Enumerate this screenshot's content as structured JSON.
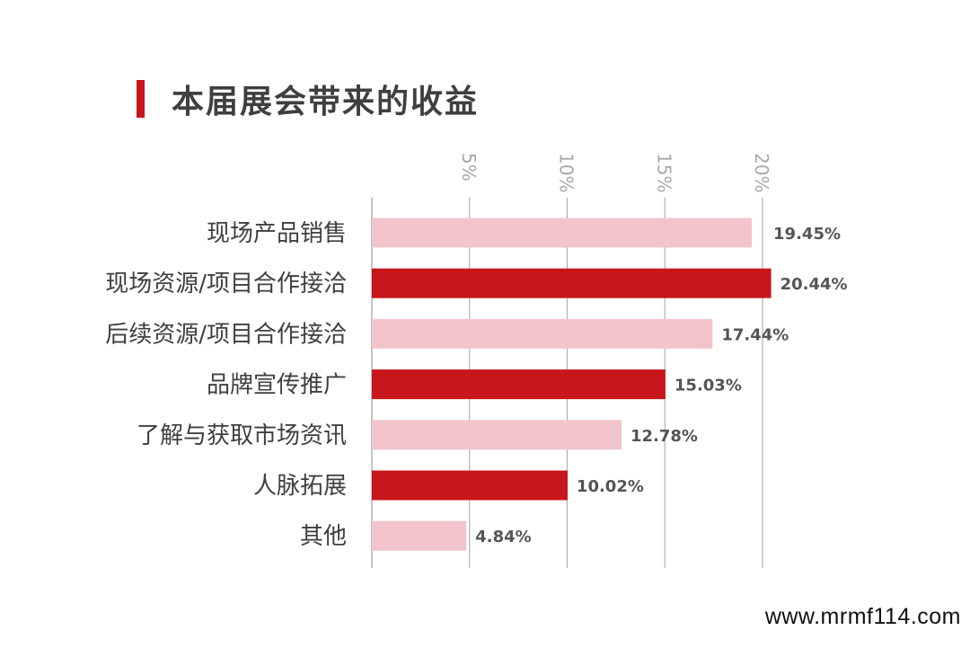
{
  "header": {
    "title": "本届展会带来的收益"
  },
  "colors": {
    "accent": "#c8161d",
    "light": "#f2c4cb",
    "axis": "#b0b0b0",
    "label": "#3f3f3f",
    "value": "#555555",
    "tick": "#a8a8a8"
  },
  "chart_data": {
    "type": "bar",
    "orientation": "horizontal",
    "title": "本届展会带来的收益",
    "categories": [
      "现场产品销售",
      "现场资源/项目合作接洽",
      "后续资源/项目合作接洽",
      "品牌宣传推广",
      "了解与获取市场资讯",
      "人脉拓展",
      "其他"
    ],
    "values": [
      19.45,
      20.44,
      17.44,
      15.03,
      12.78,
      10.02,
      4.84
    ],
    "value_labels": [
      "19.45%",
      "20.44%",
      "17.44%",
      "15.03%",
      "12.78%",
      "10.02%",
      "4.84%"
    ],
    "bar_colors": [
      "light",
      "accent",
      "light",
      "accent",
      "light",
      "accent",
      "light"
    ],
    "xticks": [
      5,
      10,
      15,
      20
    ],
    "xtick_labels": [
      "5%",
      "10%",
      "15%",
      "20%"
    ],
    "xlim": [
      0,
      20.4
    ],
    "grid": true,
    "xlabel": "",
    "ylabel": ""
  },
  "footer": {
    "watermark": "www.mrmf114.com"
  }
}
